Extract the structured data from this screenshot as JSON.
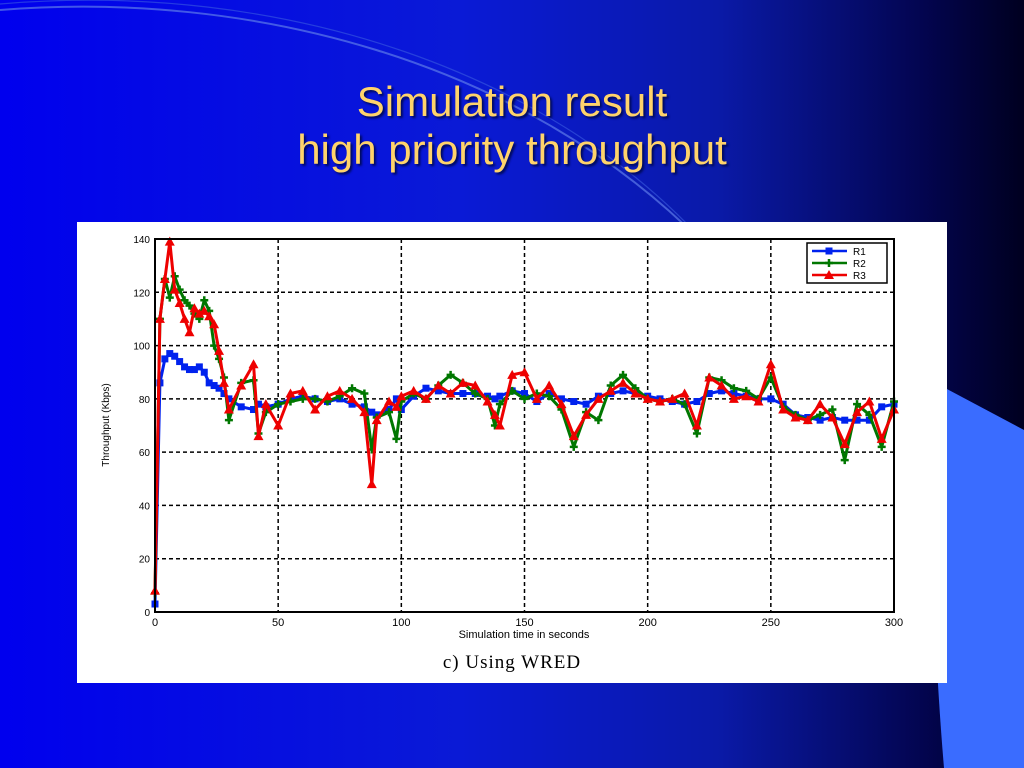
{
  "slide": {
    "title_line1": "Simulation result",
    "title_line2": "high priority throughput",
    "caption": "c) Using WRED"
  },
  "colors": {
    "title": "#ffd36b",
    "R1": "#0022ee",
    "R2": "#007700",
    "R3": "#ee0000"
  },
  "chart_data": {
    "type": "line",
    "xlabel": "Simulation time in seconds",
    "ylabel": "Throughput (Kbps)",
    "xlim": [
      0,
      300
    ],
    "ylim": [
      0,
      140
    ],
    "x_ticks": [
      "0",
      "50",
      "100",
      "150",
      "200",
      "250",
      "300"
    ],
    "y_ticks": [
      "0",
      "20",
      "40",
      "60",
      "80",
      "100",
      "120",
      "140"
    ],
    "grid": true,
    "legend_position": "top-right",
    "x": [
      0,
      2,
      4,
      6,
      8,
      10,
      12,
      14,
      16,
      18,
      20,
      22,
      24,
      26,
      28,
      30,
      35,
      40,
      42,
      45,
      50,
      55,
      60,
      65,
      70,
      75,
      80,
      85,
      88,
      90,
      95,
      98,
      100,
      105,
      110,
      115,
      120,
      125,
      130,
      135,
      138,
      140,
      145,
      150,
      155,
      160,
      165,
      170,
      175,
      180,
      185,
      190,
      195,
      200,
      205,
      210,
      215,
      220,
      225,
      230,
      235,
      240,
      245,
      250,
      255,
      260,
      265,
      270,
      275,
      280,
      285,
      290,
      295,
      300
    ],
    "series": [
      {
        "name": "R1",
        "marker": "square",
        "values": [
          3,
          86,
          95,
          97,
          96,
          94,
          92,
          91,
          91,
          92,
          90,
          86,
          85,
          84,
          82,
          80,
          77,
          76,
          78,
          77,
          78,
          80,
          81,
          80,
          79,
          80,
          78,
          77,
          75,
          74,
          76,
          80,
          76,
          81,
          84,
          83,
          82,
          82,
          82,
          81,
          80,
          81,
          83,
          82,
          79,
          82,
          80,
          79,
          78,
          81,
          82,
          83,
          82,
          81,
          80,
          79,
          78,
          79,
          82,
          83,
          82,
          81,
          80,
          80,
          78,
          74,
          73,
          72,
          73,
          72,
          72,
          72,
          77,
          78
        ]
      },
      {
        "name": "R2",
        "marker": "plus",
        "values": [
          7,
          110,
          125,
          118,
          126,
          121,
          117,
          115,
          112,
          110,
          117,
          113,
          100,
          95,
          88,
          72,
          86,
          87,
          67,
          75,
          78,
          79,
          80,
          80,
          79,
          81,
          84,
          82,
          61,
          73,
          75,
          65,
          79,
          82,
          80,
          85,
          89,
          86,
          82,
          80,
          70,
          78,
          83,
          80,
          82,
          81,
          76,
          62,
          75,
          72,
          85,
          89,
          84,
          80,
          79,
          80,
          78,
          67,
          88,
          87,
          84,
          83,
          80,
          88,
          77,
          74,
          72,
          74,
          76,
          57,
          78,
          74,
          62,
          79
        ]
      },
      {
        "name": "R3",
        "marker": "triangle",
        "values": [
          8,
          110,
          125,
          139,
          121,
          116,
          110,
          105,
          114,
          112,
          113,
          111,
          108,
          98,
          86,
          76,
          85,
          93,
          66,
          78,
          70,
          82,
          83,
          76,
          81,
          83,
          80,
          75,
          48,
          72,
          79,
          77,
          81,
          83,
          80,
          85,
          82,
          86,
          85,
          79,
          74,
          70,
          89,
          90,
          80,
          85,
          78,
          66,
          74,
          80,
          83,
          86,
          82,
          80,
          79,
          80,
          82,
          70,
          88,
          85,
          80,
          81,
          79,
          93,
          76,
          73,
          72,
          78,
          73,
          63,
          75,
          79,
          65,
          76
        ]
      }
    ]
  }
}
